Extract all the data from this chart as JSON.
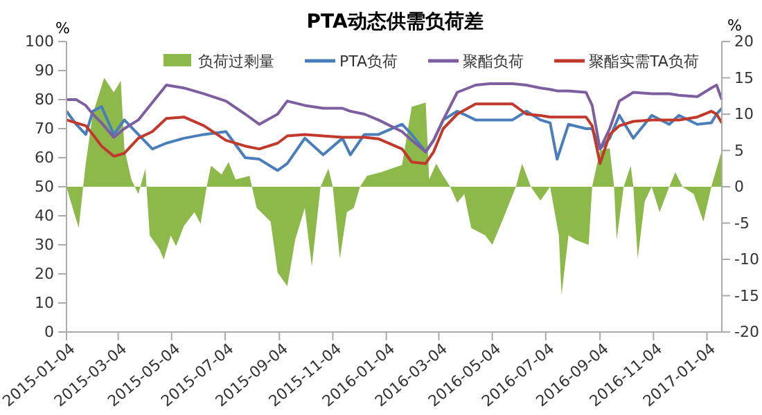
{
  "chart_data": {
    "type": "line",
    "title": "PTA动态供需负荷差",
    "ylabel": "%",
    "y2label": "%",
    "xlim": [
      "2015-01-04",
      "2017-01-21"
    ],
    "xticks": [
      "2015-01-04",
      "2015-03-04",
      "2015-05-04",
      "2015-07-04",
      "2015-09-04",
      "2015-11-04",
      "2016-01-04",
      "2016-03-04",
      "2016-05-04",
      "2016-07-04",
      "2016-09-04",
      "2016-11-04",
      "2017-01-04"
    ],
    "ylim": [
      0,
      100
    ],
    "yticks": [
      0,
      10,
      20,
      30,
      40,
      50,
      60,
      70,
      80,
      90,
      100
    ],
    "y2lim": [
      -20,
      20
    ],
    "y2ticks": [
      -20,
      -15,
      -10,
      -5,
      0,
      5,
      10,
      15,
      20
    ],
    "legend": "top",
    "grid": false,
    "series": [
      {
        "name": "负荷过剩量",
        "type": "area",
        "axis": "y2",
        "color": "#8db84a",
        "x": [
          "2015-01-04",
          "2015-01-07",
          "2015-01-18",
          "2015-01-23",
          "2015-01-26",
          "2015-02-03",
          "2015-02-16",
          "2015-02-27",
          "2015-03-07",
          "2015-03-11",
          "2015-03-19",
          "2015-03-27",
          "2015-04-04",
          "2015-04-09",
          "2015-04-20",
          "2015-04-25",
          "2015-05-03",
          "2015-05-09",
          "2015-05-18",
          "2015-05-30",
          "2015-06-06",
          "2015-06-13",
          "2015-06-18",
          "2015-06-30",
          "2015-07-08",
          "2015-07-16",
          "2015-08-01",
          "2015-08-09",
          "2015-08-25",
          "2015-09-02",
          "2015-09-13",
          "2015-09-22",
          "2015-10-03",
          "2015-10-11",
          "2015-10-21",
          "2015-10-30",
          "2015-11-04",
          "2015-11-12",
          "2015-11-20",
          "2015-11-28",
          "2015-12-05",
          "2015-12-13",
          "2015-12-29",
          "2016-01-22",
          "2016-02-02",
          "2016-02-18",
          "2016-02-22",
          "2016-03-01",
          "2016-03-09",
          "2016-03-17",
          "2016-03-25",
          "2016-04-02",
          "2016-04-10",
          "2016-04-26",
          "2016-05-04",
          "2016-05-15",
          "2016-05-31",
          "2016-06-07",
          "2016-06-17",
          "2016-06-28",
          "2016-07-09",
          "2016-07-19",
          "2016-07-22",
          "2016-07-30",
          "2016-08-07",
          "2016-08-22",
          "2016-08-26",
          "2016-09-04",
          "2016-09-15",
          "2016-09-20",
          "2016-09-23",
          "2016-10-01",
          "2016-10-09",
          "2016-10-12",
          "2016-10-17",
          "2016-10-25",
          "2016-11-02",
          "2016-11-11",
          "2016-11-22",
          "2016-11-29",
          "2016-12-07",
          "2016-12-20",
          "2016-12-31",
          "2017-01-09",
          "2017-01-15",
          "2017-01-21"
        ],
        "values": [
          0,
          -1.3,
          -5.7,
          0,
          3.2,
          10,
          15,
          13,
          14.6,
          5.3,
          1,
          -1,
          2.5,
          -6.7,
          -8.6,
          -10,
          -6.7,
          -8.2,
          -5.4,
          -3.5,
          -5.1,
          0,
          2.9,
          1.7,
          3.4,
          1,
          1.5,
          -2.9,
          -4.8,
          -11.8,
          -13.7,
          -7.3,
          -2.9,
          -11,
          0,
          2.5,
          0,
          -9.9,
          -3.5,
          -2.9,
          0,
          1.5,
          2,
          3,
          11,
          11.6,
          1,
          3.2,
          1.5,
          0,
          -2.2,
          -1,
          -5.7,
          -6.7,
          -8,
          -4.8,
          0,
          3.2,
          0,
          -1.9,
          0,
          -6.7,
          -14.9,
          -6.7,
          -7.3,
          -8,
          0,
          5,
          5.3,
          0,
          -7.3,
          0,
          2.9,
          0,
          -9.9,
          -2,
          0,
          -3.5,
          0,
          2,
          0,
          -1,
          -4.8,
          0,
          2.5,
          5
        ]
      },
      {
        "name": "PTA负荷",
        "color": "#4a7ebb",
        "x": [
          "2015-01-04",
          "2015-01-15",
          "2015-01-26",
          "2015-02-03",
          "2015-02-13",
          "2015-02-27",
          "2015-03-11",
          "2015-03-27",
          "2015-04-12",
          "2015-04-28",
          "2015-05-18",
          "2015-06-10",
          "2015-07-05",
          "2015-07-27",
          "2015-08-12",
          "2015-09-02",
          "2015-09-13",
          "2015-10-03",
          "2015-10-24",
          "2015-11-15",
          "2015-11-24",
          "2015-12-10",
          "2015-12-26",
          "2016-01-22",
          "2016-02-02",
          "2016-02-18",
          "2016-02-27",
          "2016-03-09",
          "2016-03-25",
          "2016-04-15",
          "2016-05-01",
          "2016-05-27",
          "2016-06-12",
          "2016-06-28",
          "2016-07-09",
          "2016-07-17",
          "2016-07-30",
          "2016-08-19",
          "2016-08-26",
          "2016-09-04",
          "2016-09-15",
          "2016-09-26",
          "2016-10-12",
          "2016-11-02",
          "2016-11-22",
          "2016-12-03",
          "2016-12-24",
          "2017-01-09",
          "2017-01-15",
          "2017-01-21"
        ],
        "values": [
          76,
          71.5,
          68,
          76,
          77.6,
          68,
          73,
          68,
          63,
          65,
          66.7,
          68,
          69,
          60,
          59.5,
          55.6,
          58,
          66.7,
          61,
          66.7,
          61,
          68,
          68,
          71.5,
          68,
          62,
          66,
          73,
          76,
          73,
          73,
          73,
          76,
          73,
          72,
          59.5,
          71.5,
          70,
          70,
          63,
          66.7,
          74.6,
          66.7,
          74.6,
          71.5,
          74.6,
          71.5,
          72,
          75,
          77
        ]
      },
      {
        "name": "聚酯负荷",
        "color": "#7d5fa0",
        "x": [
          "2015-01-04",
          "2015-01-15",
          "2015-01-26",
          "2015-02-03",
          "2015-02-13",
          "2015-02-27",
          "2015-03-11",
          "2015-03-27",
          "2015-04-12",
          "2015-04-28",
          "2015-05-18",
          "2015-06-10",
          "2015-07-05",
          "2015-07-27",
          "2015-08-12",
          "2015-09-02",
          "2015-09-13",
          "2015-10-03",
          "2015-10-24",
          "2015-11-15",
          "2015-11-24",
          "2015-12-10",
          "2015-12-26",
          "2016-01-22",
          "2016-02-02",
          "2016-02-18",
          "2016-02-27",
          "2016-03-09",
          "2016-03-25",
          "2016-04-15",
          "2016-05-01",
          "2016-05-27",
          "2016-06-12",
          "2016-06-28",
          "2016-07-09",
          "2016-07-17",
          "2016-07-30",
          "2016-08-19",
          "2016-08-26",
          "2016-09-04",
          "2016-09-15",
          "2016-09-26",
          "2016-10-12",
          "2016-11-02",
          "2016-11-22",
          "2016-12-03",
          "2016-12-24",
          "2017-01-09",
          "2017-01-15",
          "2017-01-21"
        ],
        "values": [
          80,
          80,
          78,
          75,
          72,
          67,
          70,
          73,
          79,
          85,
          84,
          82,
          79.5,
          75,
          71.5,
          75,
          79.5,
          78,
          77,
          77,
          76,
          75,
          73,
          69,
          66,
          62,
          66,
          73,
          82.5,
          85,
          85.5,
          85.5,
          85,
          84,
          83.5,
          83,
          83,
          82.5,
          78,
          63,
          70,
          79.5,
          82.5,
          82,
          82,
          81.5,
          81,
          84,
          85,
          80
        ]
      },
      {
        "name": "聚酯实需TA负荷",
        "color": "#c0392b",
        "x": [
          "2015-01-04",
          "2015-01-15",
          "2015-01-26",
          "2015-02-03",
          "2015-02-13",
          "2015-02-27",
          "2015-03-11",
          "2015-03-27",
          "2015-04-12",
          "2015-04-28",
          "2015-05-18",
          "2015-06-10",
          "2015-07-05",
          "2015-07-27",
          "2015-08-12",
          "2015-09-02",
          "2015-09-13",
          "2015-10-03",
          "2015-10-24",
          "2015-11-15",
          "2015-11-24",
          "2015-12-10",
          "2015-12-26",
          "2016-01-22",
          "2016-02-02",
          "2016-02-18",
          "2016-02-27",
          "2016-03-09",
          "2016-03-25",
          "2016-04-15",
          "2016-05-01",
          "2016-05-27",
          "2016-06-12",
          "2016-06-28",
          "2016-07-09",
          "2016-07-17",
          "2016-07-30",
          "2016-08-19",
          "2016-08-26",
          "2016-09-04",
          "2016-09-15",
          "2016-09-26",
          "2016-10-12",
          "2016-11-02",
          "2016-11-22",
          "2016-12-03",
          "2016-12-24",
          "2017-01-09",
          "2017-01-15",
          "2017-01-21"
        ],
        "values": [
          73,
          72,
          71,
          68,
          64,
          60.5,
          61.5,
          66.7,
          69,
          73.5,
          74,
          71,
          66,
          64,
          63,
          65,
          67.5,
          68,
          67.5,
          67,
          67,
          67,
          66.5,
          63,
          58.5,
          58,
          62,
          70,
          75,
          78.5,
          78.5,
          78.5,
          75,
          74.5,
          74,
          74,
          74,
          74,
          71,
          58,
          68,
          71,
          72.5,
          73,
          73,
          73,
          74,
          76,
          75,
          72
        ]
      }
    ]
  }
}
